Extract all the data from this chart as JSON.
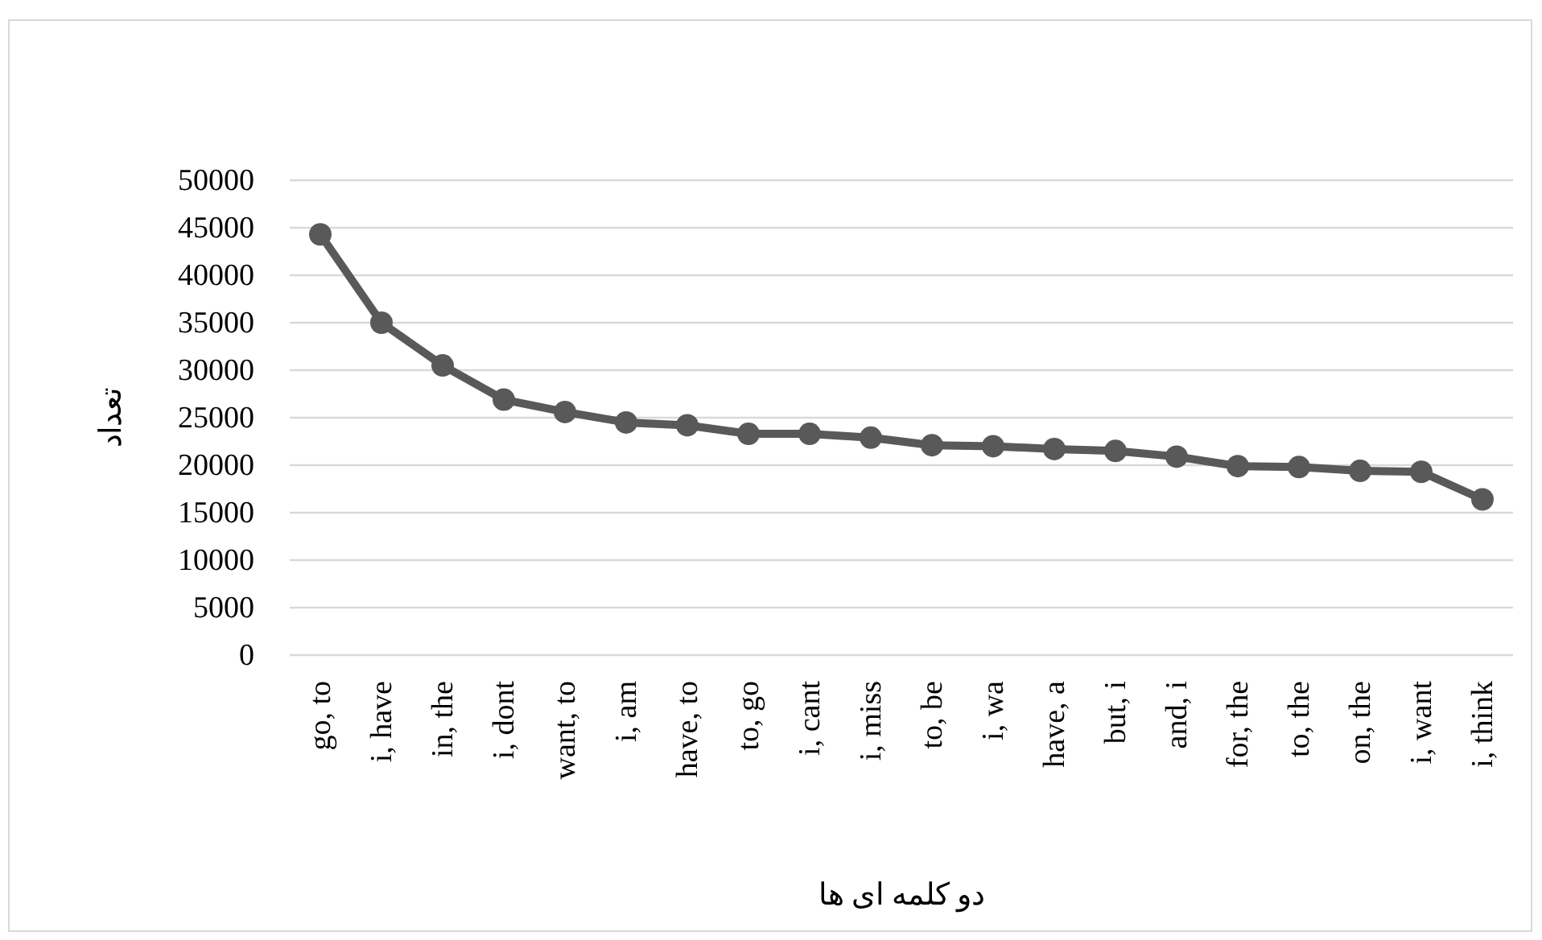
{
  "chart_data": {
    "type": "line",
    "xlabel": "دو کلمه ای ها",
    "ylabel": "تعداد",
    "categories": [
      "go, to",
      "i, have",
      "in, the",
      "i, dont",
      "want, to",
      "i, am",
      "have, to",
      "to, go",
      "i, cant",
      "i, miss",
      "to, be",
      "i, wa",
      "have, a",
      "but, i",
      "and, i",
      "for, the",
      "to, the",
      "on, the",
      "i, want",
      "i, think"
    ],
    "series": [
      {
        "color": "#595959",
        "values": [
          44300,
          35000,
          30500,
          26900,
          25600,
          24500,
          24200,
          23300,
          23300,
          22900,
          22100,
          22000,
          21700,
          21500,
          20900,
          19900,
          19800,
          19400,
          19300,
          16400
        ]
      }
    ],
    "ylim": [
      0,
      50000
    ],
    "yticks": [
      0,
      5000,
      10000,
      15000,
      20000,
      25000,
      30000,
      35000,
      40000,
      45000,
      50000
    ],
    "grid": "y",
    "marker": "circle",
    "line_style": "solid"
  }
}
